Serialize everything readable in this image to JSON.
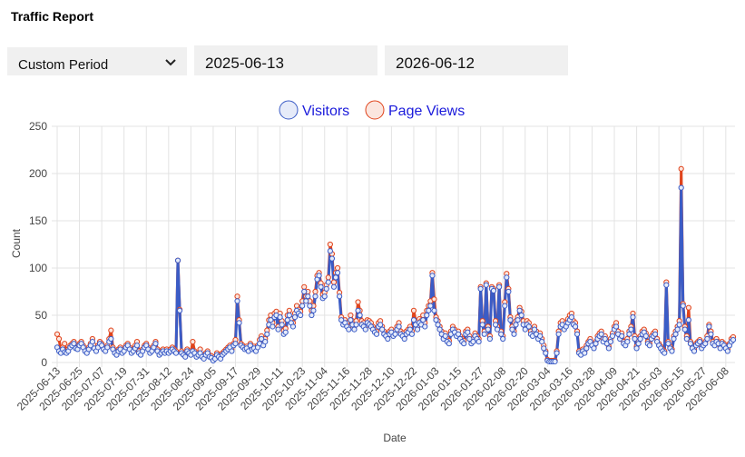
{
  "header": {
    "title": "Traffic Report"
  },
  "controls": {
    "period": "Custom Period",
    "start_date": "2025-06-13",
    "end_date": "2026-06-12"
  },
  "chart_data": {
    "type": "line",
    "x_label": "Date",
    "y_label": "Count",
    "legend": "top",
    "grid": true,
    "ylim": [
      0,
      250
    ],
    "yticks": [
      0,
      50,
      100,
      150,
      200,
      250
    ],
    "categories": [
      "2025-06-13",
      null,
      null,
      null,
      null,
      null,
      null,
      null,
      null,
      null,
      null,
      null,
      "2025-06-25",
      null,
      null,
      null,
      null,
      null,
      null,
      null,
      null,
      null,
      null,
      null,
      "2025-07-07",
      null,
      null,
      null,
      null,
      null,
      null,
      null,
      null,
      null,
      null,
      null,
      "2025-07-19",
      null,
      null,
      null,
      null,
      null,
      null,
      null,
      null,
      null,
      null,
      null,
      "2025-07-31",
      null,
      null,
      null,
      null,
      null,
      null,
      null,
      null,
      null,
      null,
      null,
      "2025-08-12",
      null,
      null,
      null,
      null,
      null,
      null,
      null,
      null,
      null,
      null,
      null,
      "2025-08-24",
      null,
      null,
      null,
      null,
      null,
      null,
      null,
      null,
      null,
      null,
      null,
      "2025-09-05",
      null,
      null,
      null,
      null,
      null,
      null,
      null,
      null,
      null,
      null,
      null,
      "2025-09-17",
      null,
      null,
      null,
      null,
      null,
      null,
      null,
      null,
      null,
      null,
      null,
      "2025-09-29",
      null,
      null,
      null,
      null,
      null,
      null,
      null,
      null,
      null,
      null,
      null,
      "2025-10-11",
      null,
      null,
      null,
      null,
      null,
      null,
      null,
      null,
      null,
      null,
      null,
      "2025-10-23",
      null,
      null,
      null,
      null,
      null,
      null,
      null,
      null,
      null,
      null,
      null,
      "2025-11-04",
      null,
      null,
      null,
      null,
      null,
      null,
      null,
      null,
      null,
      null,
      null,
      "2025-11-16",
      null,
      null,
      null,
      null,
      null,
      null,
      null,
      null,
      null,
      null,
      null,
      "2025-11-28",
      null,
      null,
      null,
      null,
      null,
      null,
      null,
      null,
      null,
      null,
      null,
      "2025-12-10",
      null,
      null,
      null,
      null,
      null,
      null,
      null,
      null,
      null,
      null,
      null,
      "2025-12-22",
      null,
      null,
      null,
      null,
      null,
      null,
      null,
      null,
      null,
      null,
      null,
      "2026-01-03",
      null,
      null,
      null,
      null,
      null,
      null,
      null,
      null,
      null,
      null,
      null,
      "2026-01-15",
      null,
      null,
      null,
      null,
      null,
      null,
      null,
      null,
      null,
      null,
      null,
      "2026-01-27",
      null,
      null,
      null,
      null,
      null,
      null,
      null,
      null,
      null,
      null,
      null,
      "2026-02-08",
      null,
      null,
      null,
      null,
      null,
      null,
      null,
      null,
      null,
      null,
      null,
      "2026-02-20",
      null,
      null,
      null,
      null,
      null,
      null,
      null,
      null,
      null,
      null,
      null,
      "2026-03-04",
      null,
      null,
      null,
      null,
      null,
      null,
      null,
      null,
      null,
      null,
      null,
      "2026-03-16",
      null,
      null,
      null,
      null,
      null,
      null,
      null,
      null,
      null,
      null,
      null,
      "2026-03-28",
      null,
      null,
      null,
      null,
      null,
      null,
      null,
      null,
      null,
      null,
      null,
      "2026-04-09",
      null,
      null,
      null,
      null,
      null,
      null,
      null,
      null,
      null,
      null,
      null,
      "2026-04-21",
      null,
      null,
      null,
      null,
      null,
      null,
      null,
      null,
      null,
      null,
      null,
      "2026-05-03",
      null,
      null,
      null,
      null,
      null,
      null,
      null,
      null,
      null,
      null,
      null,
      "2026-05-15",
      null,
      null,
      null,
      null,
      null,
      null,
      null,
      null,
      null,
      null,
      null,
      "2026-05-27",
      null,
      null,
      null,
      null,
      null,
      null,
      null,
      null,
      null,
      null,
      null,
      "2026-06-08",
      null,
      null,
      null,
      null
    ],
    "series": [
      {
        "name": "Visitors",
        "color": "#3b5cc6",
        "fill": "#e6ebf9",
        "values": [
          16,
          12,
          10,
          14,
          11,
          10,
          12,
          16,
          18,
          20,
          15,
          14,
          18,
          20,
          16,
          12,
          10,
          14,
          18,
          22,
          15,
          12,
          16,
          20,
          18,
          14,
          12,
          16,
          22,
          25,
          14,
          10,
          8,
          12,
          14,
          10,
          12,
          16,
          18,
          14,
          10,
          12,
          15,
          18,
          10,
          8,
          12,
          16,
          18,
          14,
          10,
          12,
          16,
          20,
          12,
          8,
          10,
          12,
          10,
          12,
          10,
          12,
          14,
          12,
          10,
          108,
          55,
          10,
          8,
          6,
          12,
          10,
          8,
          12,
          10,
          6,
          8,
          10,
          6,
          4,
          8,
          10,
          6,
          5,
          2,
          4,
          8,
          6,
          4,
          8,
          10,
          12,
          14,
          16,
          12,
          18,
          20,
          65,
          42,
          18,
          16,
          14,
          15,
          12,
          18,
          14,
          15,
          12,
          16,
          20,
          25,
          18,
          22,
          30,
          40,
          45,
          38,
          48,
          50,
          35,
          48,
          40,
          30,
          32,
          45,
          50,
          42,
          38,
          48,
          55,
          52,
          50,
          60,
          75,
          65,
          70,
          60,
          50,
          55,
          70,
          88,
          92,
          80,
          68,
          70,
          78,
          85,
          118,
          110,
          80,
          90,
          95,
          70,
          45,
          40,
          42,
          38,
          35,
          45,
          40,
          35,
          40,
          55,
          50,
          40,
          38,
          35,
          42,
          40,
          38,
          35,
          32,
          30,
          38,
          40,
          35,
          30,
          28,
          25,
          30,
          32,
          28,
          30,
          35,
          38,
          30,
          28,
          25,
          30,
          32,
          35,
          30,
          45,
          40,
          35,
          42,
          40,
          45,
          38,
          50,
          55,
          60,
          92,
          55,
          45,
          40,
          35,
          30,
          25,
          28,
          22,
          20,
          30,
          35,
          32,
          28,
          30,
          25,
          22,
          20,
          30,
          32,
          25,
          20,
          22,
          28,
          25,
          22,
          78,
          40,
          30,
          82,
          35,
          25,
          78,
          76,
          40,
          35,
          80,
          30,
          25,
          60,
          90,
          75,
          45,
          35,
          30,
          40,
          45,
          55,
          50,
          40,
          35,
          40,
          38,
          30,
          28,
          35,
          30,
          25,
          28,
          22,
          15,
          10,
          2,
          1,
          1,
          1,
          1,
          10,
          30,
          38,
          40,
          35,
          38,
          42,
          45,
          48,
          40,
          38,
          30,
          10,
          8,
          12,
          10,
          15,
          20,
          22,
          18,
          15,
          20,
          25,
          28,
          30,
          22,
          25,
          20,
          15,
          22,
          28,
          35,
          38,
          30,
          25,
          28,
          20,
          18,
          22,
          30,
          35,
          48,
          25,
          15,
          20,
          25,
          30,
          32,
          28,
          20,
          18,
          25,
          28,
          30,
          22,
          18,
          15,
          12,
          10,
          82,
          20,
          15,
          12,
          25,
          30,
          35,
          40,
          185,
          60,
          35,
          25,
          45,
          20,
          15,
          12,
          18,
          20,
          22,
          15,
          18,
          20,
          25,
          38,
          30,
          20,
          18,
          22,
          20,
          15,
          20,
          18,
          15,
          12,
          18,
          22,
          24
        ]
      },
      {
        "name": "Page Views",
        "color": "#e0441c",
        "fill": "#fbe6df",
        "values": [
          30,
          25,
          12,
          16,
          20,
          12,
          14,
          18,
          20,
          22,
          18,
          16,
          20,
          22,
          18,
          14,
          12,
          16,
          20,
          25,
          18,
          14,
          18,
          22,
          20,
          16,
          14,
          18,
          25,
          34,
          16,
          12,
          10,
          14,
          16,
          12,
          14,
          18,
          20,
          16,
          12,
          14,
          18,
          22,
          12,
          10,
          14,
          18,
          20,
          16,
          12,
          14,
          18,
          22,
          14,
          10,
          12,
          14,
          12,
          14,
          12,
          14,
          16,
          14,
          12,
          108,
          56,
          12,
          10,
          8,
          14,
          12,
          10,
          22,
          12,
          8,
          10,
          14,
          8,
          6,
          10,
          12,
          8,
          7,
          4,
          6,
          10,
          8,
          6,
          10,
          12,
          14,
          16,
          18,
          14,
          20,
          24,
          70,
          45,
          20,
          18,
          16,
          17,
          14,
          20,
          16,
          17,
          14,
          18,
          24,
          28,
          20,
          25,
          34,
          45,
          50,
          42,
          52,
          54,
          38,
          52,
          44,
          34,
          36,
          50,
          55,
          46,
          42,
          52,
          60,
          56,
          54,
          65,
          80,
          70,
          75,
          65,
          55,
          60,
          75,
          92,
          95,
          84,
          72,
          74,
          82,
          90,
          125,
          115,
          85,
          95,
          100,
          74,
          48,
          44,
          45,
          42,
          38,
          50,
          44,
          38,
          44,
          64,
          55,
          44,
          42,
          38,
          45,
          44,
          42,
          38,
          35,
          33,
          42,
          44,
          38,
          33,
          30,
          28,
          33,
          35,
          31,
          33,
          38,
          42,
          33,
          31,
          28,
          33,
          35,
          38,
          33,
          55,
          44,
          38,
          46,
          44,
          50,
          42,
          55,
          60,
          65,
          95,
          67,
          48,
          44,
          38,
          33,
          28,
          31,
          25,
          23,
          33,
          38,
          35,
          31,
          33,
          28,
          25,
          23,
          33,
          35,
          28,
          23,
          25,
          31,
          28,
          25,
          80,
          44,
          33,
          84,
          38,
          28,
          80,
          78,
          44,
          38,
          82,
          33,
          28,
          64,
          94,
          78,
          48,
          38,
          33,
          44,
          48,
          58,
          54,
          44,
          38,
          44,
          42,
          33,
          31,
          38,
          33,
          28,
          31,
          25,
          18,
          12,
          3,
          2,
          2,
          2,
          2,
          12,
          33,
          42,
          44,
          38,
          42,
          46,
          50,
          52,
          44,
          42,
          33,
          12,
          10,
          14,
          12,
          18,
          22,
          25,
          20,
          17,
          22,
          28,
          31,
          33,
          25,
          28,
          22,
          17,
          25,
          31,
          38,
          42,
          33,
          28,
          31,
          22,
          20,
          25,
          33,
          38,
          52,
          28,
          17,
          22,
          28,
          33,
          35,
          31,
          22,
          20,
          28,
          31,
          33,
          25,
          20,
          17,
          14,
          12,
          85,
          22,
          17,
          14,
          28,
          33,
          38,
          44,
          205,
          62,
          38,
          28,
          58,
          22,
          17,
          14,
          20,
          22,
          24,
          17,
          20,
          22,
          28,
          40,
          33,
          22,
          20,
          25,
          22,
          17,
          22,
          20,
          17,
          14,
          20,
          25,
          27
        ]
      }
    ]
  }
}
